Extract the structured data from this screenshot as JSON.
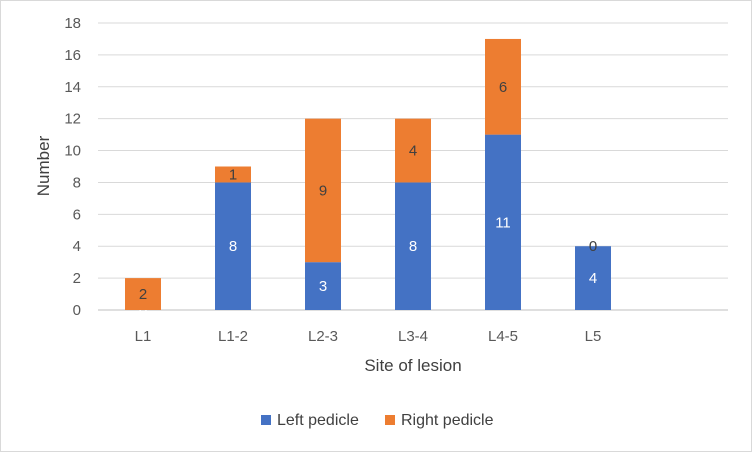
{
  "chart_data": {
    "type": "bar",
    "stacked": true,
    "categories": [
      "L1",
      "L1-2",
      "L2-3",
      "L3-4",
      "L4-5",
      "L5"
    ],
    "series": [
      {
        "name": "Left pedicle",
        "values": [
          0,
          8,
          3,
          8,
          11,
          4
        ],
        "color": "#4472c4"
      },
      {
        "name": "Right pedicle",
        "values": [
          2,
          1,
          9,
          4,
          6,
          0
        ],
        "color": "#ed7d31"
      }
    ],
    "title": "",
    "xlabel": "Site of lesion",
    "ylabel": "Number",
    "ylim": [
      0,
      18
    ],
    "yticks": [
      0,
      2,
      4,
      6,
      8,
      10,
      12,
      14,
      16,
      18
    ],
    "grid": true,
    "legend_position": "bottom",
    "data_labels": true
  }
}
